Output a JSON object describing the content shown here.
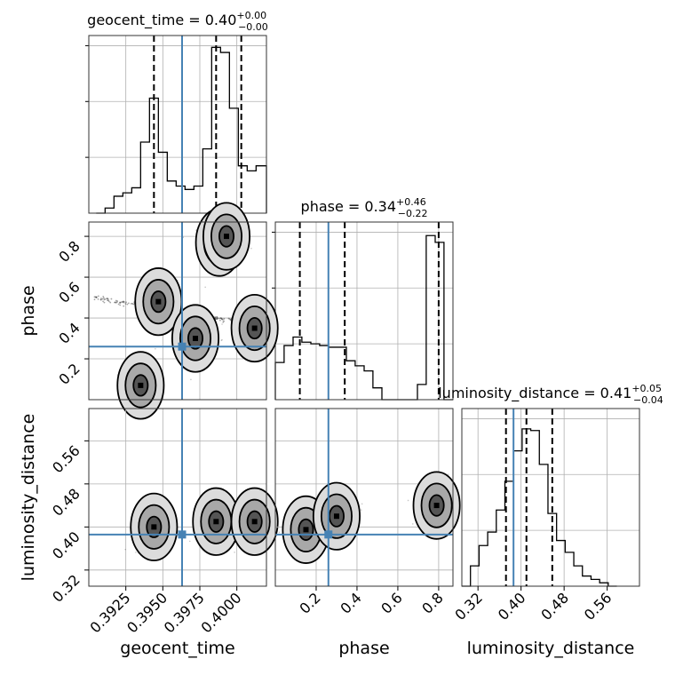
{
  "chart_data": [
    {
      "id": "geocent_time-hist",
      "type": "histogram",
      "title": {
        "name": "geocent_time",
        "median": "0.40",
        "plus": "+0.00",
        "minus": "−0.00"
      },
      "xlim": [
        0.39,
        0.402
      ],
      "xticks": [
        0.3925,
        0.395,
        0.3975,
        0.4
      ],
      "ylim": [
        0,
        1.05
      ],
      "bin_edges": [
        0.3905,
        0.3911,
        0.3917,
        0.3923,
        0.3929,
        0.3935,
        0.3941,
        0.3947,
        0.3953,
        0.3959,
        0.3965,
        0.3971,
        0.3977,
        0.3983,
        0.3989,
        0.3995,
        0.4001,
        0.4007,
        0.4013,
        0.402
      ],
      "counts": [
        0.0,
        0.03,
        0.1,
        0.12,
        0.15,
        0.42,
        0.68,
        0.36,
        0.19,
        0.16,
        0.14,
        0.16,
        0.38,
        0.98,
        0.95,
        0.62,
        0.28,
        0.25,
        0.28
      ],
      "quantiles": [
        0.3944,
        0.3986,
        0.4003
      ],
      "truth": 0.3963
    },
    {
      "id": "phase-hist",
      "type": "histogram",
      "title": {
        "name": "phase",
        "median": "0.34",
        "plus": "+0.46",
        "minus": "−0.22"
      },
      "xlim": [
        0.0,
        0.87
      ],
      "xticks": [
        0.2,
        0.4,
        0.6,
        0.8
      ],
      "ylim": [
        0,
        1.05
      ],
      "bin_edges": [
        0.0,
        0.043,
        0.087,
        0.13,
        0.174,
        0.217,
        0.261,
        0.304,
        0.348,
        0.391,
        0.435,
        0.478,
        0.522,
        0.565,
        0.609,
        0.652,
        0.696,
        0.739,
        0.783,
        0.826,
        0.87
      ],
      "counts": [
        0.22,
        0.32,
        0.37,
        0.34,
        0.33,
        0.32,
        0.31,
        0.31,
        0.23,
        0.2,
        0.17,
        0.07,
        0.0,
        0.0,
        0.0,
        0.0,
        0.09,
        0.97,
        0.93,
        0.0
      ],
      "quantiles": [
        0.12,
        0.34,
        0.8
      ],
      "truth": 0.26
    },
    {
      "id": "luminosity_distance-hist",
      "type": "histogram",
      "title": {
        "name": "luminosity_distance",
        "median": "0.41",
        "plus": "+0.05",
        "minus": "−0.04"
      },
      "xlim": [
        0.29,
        0.62
      ],
      "xticks": [
        0.32,
        0.4,
        0.48,
        0.56
      ],
      "ylim": [
        0,
        1.05
      ],
      "bin_edges": [
        0.29,
        0.306,
        0.322,
        0.338,
        0.354,
        0.37,
        0.386,
        0.402,
        0.418,
        0.434,
        0.45,
        0.466,
        0.482,
        0.498,
        0.514,
        0.53,
        0.546,
        0.562,
        0.578
      ],
      "counts": [
        0.0,
        0.12,
        0.24,
        0.32,
        0.45,
        0.62,
        0.8,
        0.93,
        0.92,
        0.72,
        0.43,
        0.27,
        0.2,
        0.12,
        0.06,
        0.04,
        0.02,
        0.0
      ],
      "quantiles": [
        0.372,
        0.41,
        0.458
      ],
      "truth": 0.386
    },
    {
      "id": "phase-vs-geocent_time",
      "type": "scatter",
      "xlabel": "geocent_time",
      "ylabel": "phase",
      "xlim": [
        0.39,
        0.402
      ],
      "ylim": [
        0.0,
        0.87
      ],
      "xticks": [
        0.3925,
        0.395,
        0.3975,
        0.4
      ],
      "yticks": [
        0.2,
        0.4,
        0.6,
        0.8
      ],
      "mode_points": [
        {
          "x": 0.3988,
          "y": 0.77,
          "density": 1.0
        },
        {
          "x": 0.3993,
          "y": 0.8,
          "density": 0.7
        },
        {
          "x": 0.3947,
          "y": 0.48,
          "density": 0.3
        },
        {
          "x": 0.3972,
          "y": 0.3,
          "density": 0.5
        },
        {
          "x": 0.4012,
          "y": 0.35,
          "density": 0.5
        },
        {
          "x": 0.3935,
          "y": 0.07,
          "density": 0.5
        }
      ],
      "truth": {
        "x": 0.3963,
        "y": 0.26
      }
    },
    {
      "id": "luminosity_distance-vs-geocent_time",
      "type": "scatter",
      "xlabel": "geocent_time",
      "ylabel": "luminosity_distance",
      "xlim": [
        0.39,
        0.402
      ],
      "ylim": [
        0.29,
        0.62
      ],
      "xticks": [
        0.3925,
        0.395,
        0.3975,
        0.4
      ],
      "yticks": [
        0.32,
        0.4,
        0.48,
        0.56
      ],
      "mode_points": [
        {
          "x": 0.3944,
          "y": 0.4,
          "density": 1.0
        },
        {
          "x": 0.3986,
          "y": 0.41,
          "density": 1.0
        },
        {
          "x": 0.4012,
          "y": 0.41,
          "density": 0.4
        }
      ],
      "truth": {
        "x": 0.3963,
        "y": 0.386
      }
    },
    {
      "id": "luminosity_distance-vs-phase",
      "type": "scatter",
      "xlabel": "phase",
      "ylabel": "luminosity_distance",
      "xlim": [
        0.0,
        0.87
      ],
      "ylim": [
        0.29,
        0.62
      ],
      "xticks": [
        0.2,
        0.4,
        0.6,
        0.8
      ],
      "yticks": [
        0.32,
        0.4,
        0.48,
        0.56
      ],
      "mode_points": [
        {
          "x": 0.15,
          "y": 0.395,
          "density": 0.9
        },
        {
          "x": 0.3,
          "y": 0.42,
          "density": 0.6
        },
        {
          "x": 0.79,
          "y": 0.44,
          "density": 1.0
        }
      ],
      "truth": {
        "x": 0.26,
        "y": 0.386
      }
    }
  ],
  "labels": {
    "geocent_time": "geocent_time",
    "phase": "phase",
    "luminosity_distance": "luminosity_distance"
  },
  "tick_labels": {
    "geocent_time": [
      "0.3925",
      "0.3950",
      "0.3975",
      "0.4000"
    ],
    "phase": [
      "0.2",
      "0.4",
      "0.6",
      "0.8"
    ],
    "luminosity_distance": [
      "0.32",
      "0.40",
      "0.48",
      "0.56"
    ]
  },
  "colors": {
    "truth": "#4682b4",
    "hist": "#000000",
    "grid": "#b0b0b0"
  }
}
